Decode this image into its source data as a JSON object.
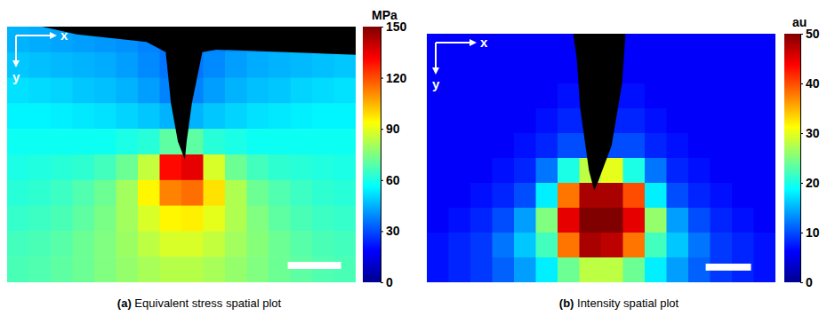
{
  "chart_data": [
    {
      "type": "heatmap",
      "title": "(a) Equivalent stress spatial plot",
      "x_axis_label": "x",
      "y_axis_label": "y",
      "tick_labels": false,
      "cells": [
        [
          45,
          44,
          43,
          42,
          41,
          40,
          38,
          36,
          36,
          38,
          40,
          41,
          42,
          43,
          44,
          45
        ],
        [
          48,
          47,
          46,
          45,
          44,
          42,
          39,
          36,
          36,
          39,
          42,
          44,
          45,
          46,
          47,
          48
        ],
        [
          52,
          51,
          50,
          48,
          47,
          45,
          42,
          38,
          38,
          42,
          45,
          47,
          48,
          50,
          51,
          52
        ],
        [
          55,
          55,
          54,
          53,
          52,
          50,
          48,
          45,
          45,
          48,
          50,
          52,
          53,
          54,
          55,
          55
        ],
        [
          58,
          58,
          58,
          58,
          58,
          60,
          62,
          70,
          70,
          62,
          60,
          58,
          58,
          58,
          58,
          58
        ],
        [
          60,
          61,
          62,
          63,
          66,
          72,
          85,
          130,
          135,
          88,
          72,
          66,
          63,
          62,
          61,
          60
        ],
        [
          62,
          63,
          65,
          68,
          72,
          80,
          95,
          112,
          115,
          98,
          82,
          72,
          68,
          65,
          63,
          62
        ],
        [
          64,
          65,
          67,
          70,
          74,
          80,
          88,
          95,
          96,
          90,
          82,
          75,
          70,
          67,
          65,
          64
        ],
        [
          66,
          67,
          69,
          72,
          75,
          79,
          84,
          88,
          88,
          85,
          80,
          76,
          72,
          69,
          67,
          66
        ],
        [
          67,
          68,
          70,
          72,
          75,
          78,
          81,
          83,
          83,
          81,
          78,
          75,
          72,
          70,
          68,
          67
        ]
      ],
      "colorbar": {
        "label": "MPa",
        "range": [
          0,
          150
        ],
        "ticks": [
          0,
          30,
          60,
          90,
          120,
          150
        ]
      }
    },
    {
      "type": "heatmap",
      "title": "(b) Intensity spatial plot",
      "x_axis_label": "x",
      "y_axis_label": "y",
      "tick_labels": false,
      "cells": [
        [
          6,
          6,
          6,
          6,
          6,
          6,
          6,
          6,
          6,
          6,
          6,
          6,
          6,
          6,
          6,
          6
        ],
        [
          6,
          6,
          6,
          6,
          6,
          6,
          6,
          6,
          6,
          6,
          6,
          6,
          6,
          6,
          6,
          6
        ],
        [
          6,
          6,
          6,
          6,
          6,
          6,
          7,
          7,
          7,
          7,
          6,
          6,
          6,
          6,
          6,
          6
        ],
        [
          6,
          6,
          6,
          6,
          6,
          7,
          8,
          8,
          8,
          8,
          7,
          6,
          6,
          6,
          6,
          6
        ],
        [
          6,
          6,
          6,
          6,
          7,
          8,
          10,
          10,
          10,
          10,
          8,
          7,
          6,
          6,
          6,
          6
        ],
        [
          6,
          6,
          6,
          7,
          8,
          12,
          20,
          28,
          30,
          20,
          12,
          8,
          7,
          6,
          6,
          6
        ],
        [
          6,
          6,
          7,
          8,
          10,
          18,
          38,
          48,
          48,
          40,
          18,
          10,
          8,
          7,
          6,
          6
        ],
        [
          6,
          7,
          8,
          10,
          14,
          25,
          45,
          50,
          50,
          45,
          26,
          14,
          10,
          8,
          7,
          6
        ],
        [
          7,
          8,
          9,
          12,
          16,
          22,
          38,
          48,
          47,
          38,
          22,
          16,
          12,
          9,
          8,
          7
        ],
        [
          7,
          8,
          9,
          11,
          14,
          18,
          24,
          28,
          28,
          24,
          18,
          14,
          11,
          9,
          8,
          7
        ]
      ],
      "colorbar": {
        "label": "au",
        "range": [
          0,
          50
        ],
        "ticks": [
          0,
          10,
          20,
          30,
          40,
          50
        ]
      }
    }
  ]
}
